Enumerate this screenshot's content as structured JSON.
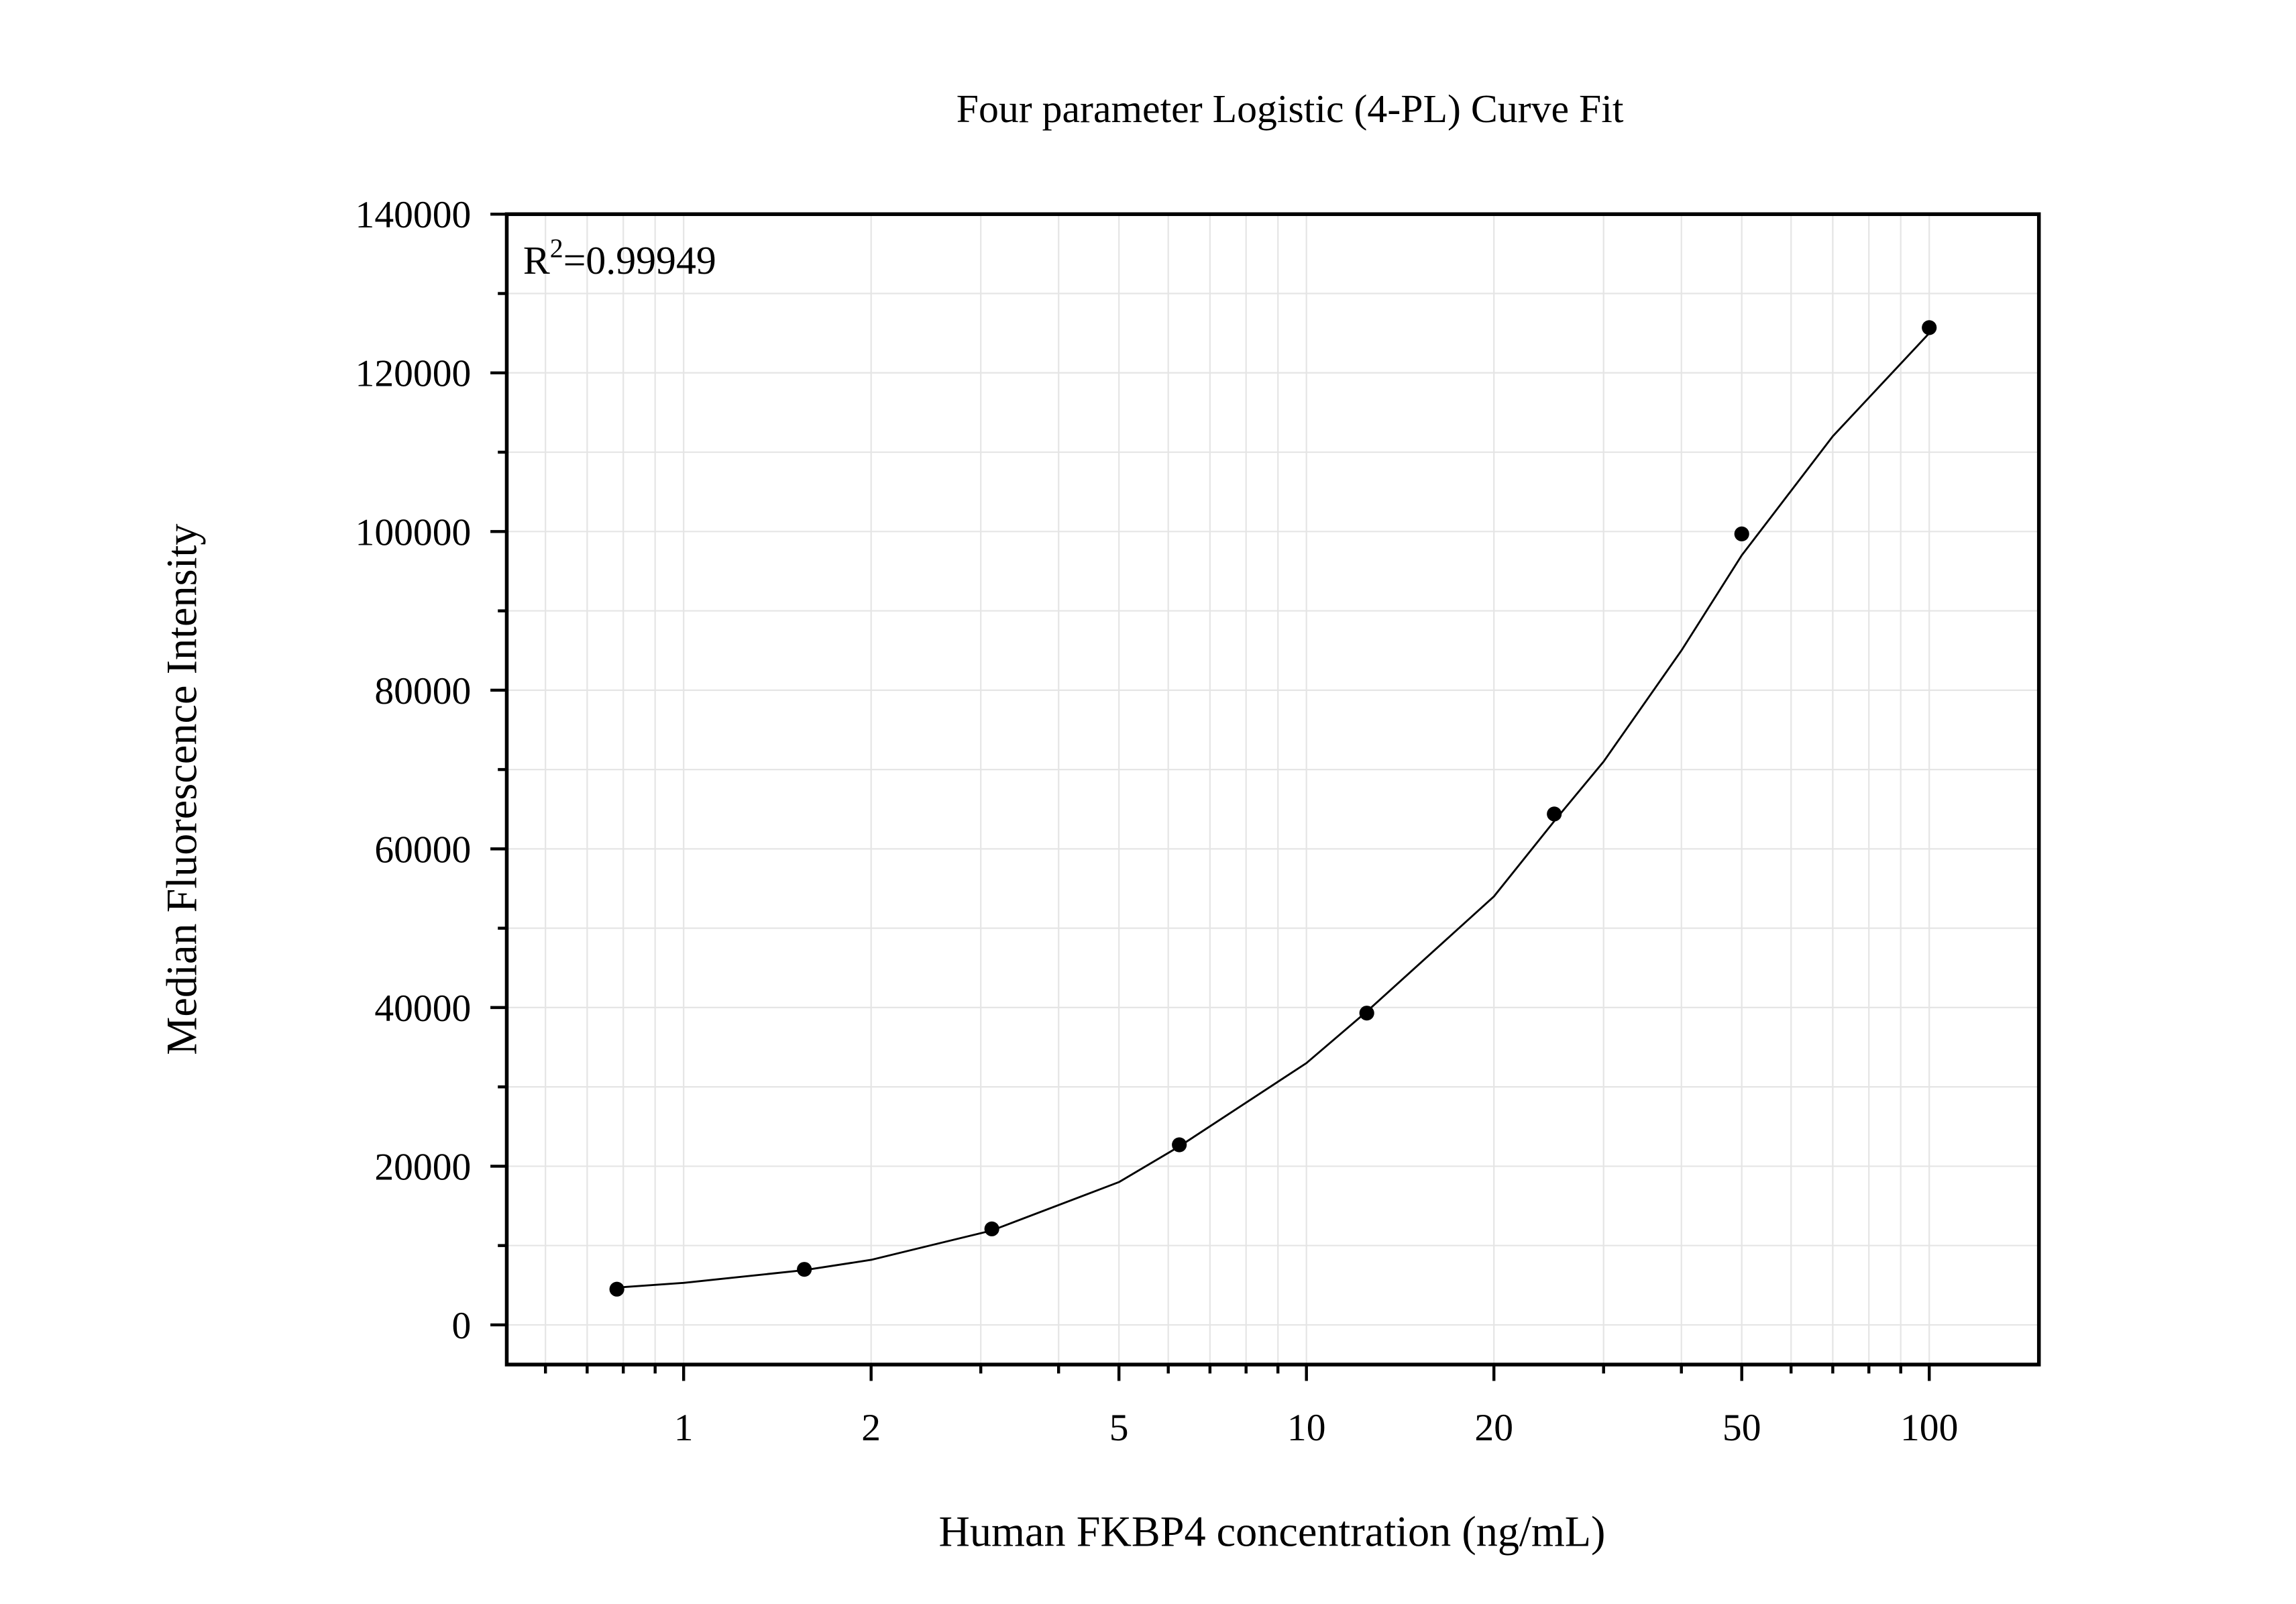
{
  "chart_data": {
    "type": "scatter",
    "title": "Four parameter Logistic (4-PL) Curve Fit",
    "xlabel": "Human FKBP4 concentration (ng/mL)",
    "ylabel": "Median Fluorescence Intensity",
    "annotation": {
      "base": "R",
      "superscript": "2",
      "text": "=0.99949"
    },
    "xscale": "log",
    "xlim": [
      0.52,
      150
    ],
    "ylim": [
      -5000,
      140000
    ],
    "xticks": [
      1,
      2,
      5,
      10,
      20,
      50,
      100
    ],
    "yticks": [
      0,
      20000,
      40000,
      60000,
      80000,
      100000,
      120000,
      140000
    ],
    "xminorticks": [
      0.6,
      0.7,
      0.8,
      0.9,
      3,
      4,
      6,
      7,
      8,
      9,
      30,
      40,
      60,
      70,
      80,
      90
    ],
    "yminorticks": [
      10000,
      30000,
      50000,
      70000,
      90000,
      110000,
      130000
    ],
    "grid": true,
    "series": [
      {
        "mode": "markers",
        "color": "#000000",
        "x": [
          0.78125,
          1.5625,
          3.125,
          6.25,
          12.5,
          25,
          50,
          100
        ],
        "values": [
          4500,
          7000,
          12100,
          22700,
          39300,
          64400,
          99700,
          125700
        ]
      },
      {
        "mode": "line",
        "color": "#000000",
        "x": [
          0.78125,
          1,
          1.5625,
          2,
          3.125,
          5,
          6.25,
          10,
          12.5,
          20,
          25,
          30,
          40,
          50,
          70,
          100
        ],
        "values": [
          4700,
          5300,
          6900,
          8200,
          11900,
          18000,
          22500,
          33000,
          39500,
          54000,
          63500,
          71000,
          85000,
          97000,
          112000,
          125000
        ]
      }
    ]
  }
}
